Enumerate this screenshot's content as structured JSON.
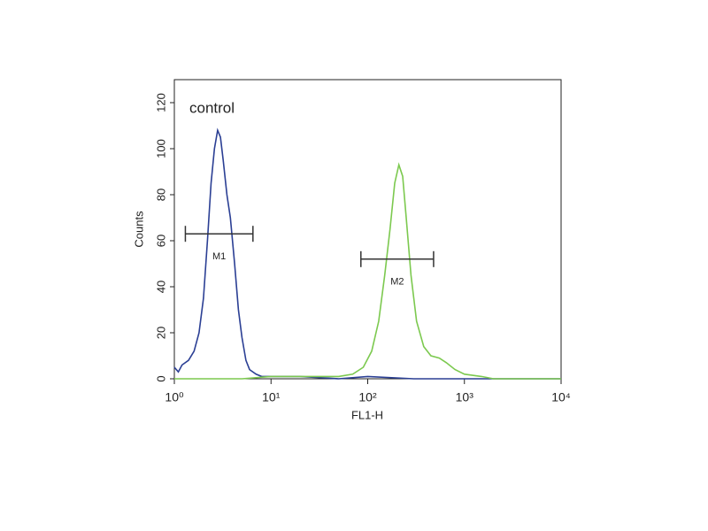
{
  "chart_data": {
    "type": "line",
    "xlabel": "FL1-H",
    "ylabel": "Counts",
    "xscale": "log",
    "xlim": [
      1,
      10000
    ],
    "ylim": [
      0,
      130
    ],
    "xticks": [
      {
        "value": 1,
        "label": "10⁰"
      },
      {
        "value": 10,
        "label": "10¹"
      },
      {
        "value": 100,
        "label": "10²"
      },
      {
        "value": 1000,
        "label": "10³"
      },
      {
        "value": 10000,
        "label": "10⁴"
      }
    ],
    "yticks": [
      0,
      20,
      40,
      60,
      80,
      100,
      120
    ],
    "series": [
      {
        "name": "control",
        "color": "#2b3f94",
        "x": [
          1.0,
          1.1,
          1.2,
          1.4,
          1.6,
          1.8,
          2.0,
          2.2,
          2.4,
          2.6,
          2.8,
          3.0,
          3.2,
          3.5,
          3.8,
          4.2,
          4.6,
          5.0,
          5.5,
          6,
          7,
          8,
          10,
          20,
          50,
          100,
          300,
          1000,
          10000
        ],
        "values": [
          5,
          3,
          6,
          8,
          12,
          20,
          35,
          60,
          85,
          100,
          108,
          105,
          95,
          80,
          70,
          50,
          30,
          18,
          8,
          4,
          2,
          1,
          1,
          1,
          0,
          1,
          0,
          0,
          0
        ]
      },
      {
        "color": "#7cc94f",
        "x": [
          1,
          5,
          10,
          30,
          50,
          70,
          90,
          110,
          130,
          150,
          170,
          190,
          210,
          230,
          250,
          280,
          320,
          380,
          450,
          550,
          650,
          800,
          1000,
          1500,
          2000,
          10000
        ],
        "values": [
          0,
          0,
          1,
          1,
          1,
          2,
          5,
          12,
          25,
          45,
          65,
          85,
          93,
          88,
          70,
          45,
          25,
          14,
          10,
          9,
          7,
          4,
          2,
          1,
          0,
          0
        ]
      }
    ],
    "markers": [
      {
        "label": "M1",
        "x": [
          1.3,
          6.5
        ],
        "y": 63
      },
      {
        "label": "M2",
        "x": [
          85,
          480
        ],
        "y": 52
      }
    ]
  }
}
